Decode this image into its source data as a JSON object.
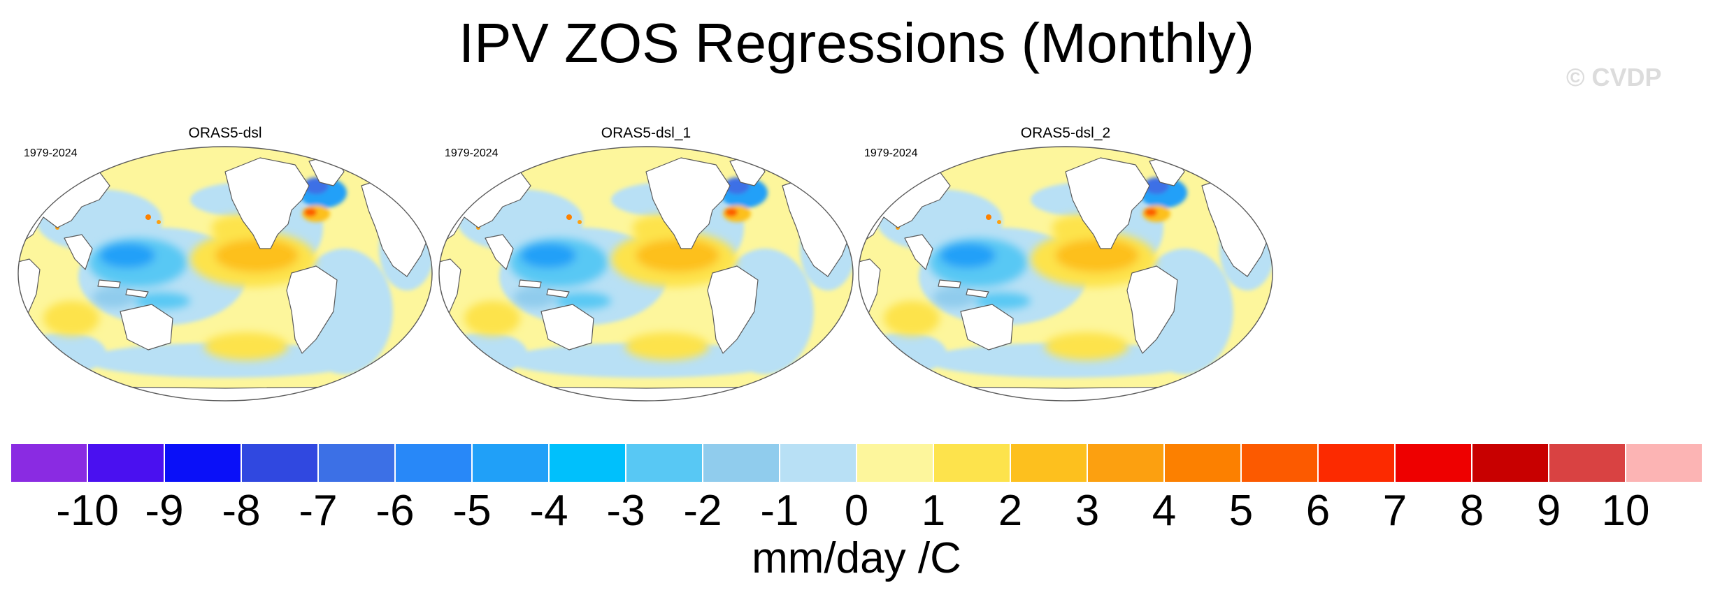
{
  "figure": {
    "title": "IPV ZOS Regressions (Monthly)",
    "watermark": "© CVDP"
  },
  "panels": [
    {
      "title": "ORAS5-dsl",
      "period": "1979-2024"
    },
    {
      "title": "ORAS5-dsl_1",
      "period": "1979-2024"
    },
    {
      "title": "ORAS5-dsl_2",
      "period": "1979-2024"
    }
  ],
  "map_legend": {
    "units": "mm/day /C",
    "tick_labels": [
      "-10",
      "-9",
      "-8",
      "-7",
      "-6",
      "-5",
      "-4",
      "-3",
      "-2",
      "-1",
      "0",
      "1",
      "2",
      "3",
      "4",
      "5",
      "6",
      "7",
      "8",
      "9",
      "10"
    ],
    "colors": [
      "#8a2be2",
      "#4a10f0",
      "#0a10f8",
      "#3048e0",
      "#3c70e6",
      "#2888f8",
      "#20a0f8",
      "#00c0fc",
      "#58c8f4",
      "#90cced",
      "#b8e0f5",
      "#fdf69c",
      "#fde34c",
      "#fdc01e",
      "#fca010",
      "#fc8000",
      "#fc5a00",
      "#fc2a00",
      "#ee0000",
      "#c80000",
      "#d94242",
      "#fcb4b4"
    ],
    "land_color": "#ffffff",
    "coast_color": "#5a5a5a"
  }
}
